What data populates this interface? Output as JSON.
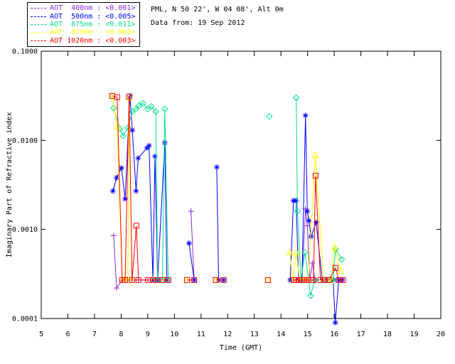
{
  "header": {
    "line1": "PML, N 50 22', W 04 08', Alt 0m",
    "line2": "Data from: 19 Sep 2012"
  },
  "legend": {
    "items": [
      {
        "label": "AOT  400nm : <0.001>",
        "color": "#8A2BD6"
      },
      {
        "label": "AOT  500nm : <0.005>",
        "color": "#0000FF"
      },
      {
        "label": "AOT  675nm : <0.011>",
        "color": "#00DE8C"
      },
      {
        "label": "AOT  870nm : <0.003>",
        "color": "#FFFF00"
      },
      {
        "label": "AOT 1020nm : <0.003>",
        "color": "#FF0000"
      }
    ]
  },
  "chart_data": {
    "type": "line",
    "title": "",
    "xlabel": "Time (GMT)",
    "ylabel": "Imaginary Part of Refractive index",
    "xlim": [
      5,
      20
    ],
    "ylim": [
      0.0001,
      0.1
    ],
    "yscale": "log",
    "grid": false,
    "legend_position": "top-left",
    "xticks": [
      5,
      6,
      7,
      8,
      9,
      10,
      11,
      12,
      13,
      14,
      15,
      16,
      17,
      18,
      19,
      20
    ],
    "yticks": [
      0.1,
      0.01,
      0.001,
      0.0001
    ],
    "ytick_labels": [
      "0.1000",
      "0.0100",
      "0.0010",
      "0.0001"
    ],
    "axis_color": "#000000",
    "series": [
      {
        "name": "AOT 400nm",
        "color": "#8A2BD6",
        "marker": "plus",
        "points": [
          [
            7.72,
            0.00085
          ],
          [
            7.83,
            0.00022
          ],
          [
            8.04,
            0.00027
          ],
          [
            8.15,
            0.00027
          ],
          [
            8.25,
            0.00027
          ],
          [
            8.41,
            0.00027
          ],
          [
            8.65,
            0.00027
          ],
          [
            9.0,
            0.00027
          ],
          [
            10.62,
            0.0016
          ],
          [
            10.74,
            0.00027
          ],
          [
            14.47,
            0.00027
          ],
          [
            14.57,
            0.00027
          ],
          [
            14.68,
            0.00027
          ],
          [
            14.79,
            0.00027
          ],
          [
            14.92,
            0.0017
          ],
          [
            14.99,
            0.0011
          ],
          [
            15.08,
            0.00027
          ],
          [
            15.18,
            0.00042
          ],
          [
            15.27,
            0.00027
          ]
        ]
      },
      {
        "name": "AOT 500nm",
        "color": "#0000FF",
        "marker": "asterisk",
        "points": [
          [
            7.69,
            0.0027
          ],
          [
            7.83,
            0.0038
          ],
          [
            8.01,
            0.0049
          ],
          [
            8.15,
            0.0022
          ],
          [
            8.33,
            0.0315
          ],
          [
            8.42,
            0.013
          ],
          [
            8.56,
            0.0027
          ],
          [
            8.64,
            0.0063
          ],
          [
            8.97,
            0.0082
          ],
          [
            9.05,
            0.0087
          ],
          [
            9.19,
            0.00027
          ],
          [
            9.27,
            0.0066
          ],
          [
            9.37,
            0.00027
          ],
          [
            9.64,
            0.0094
          ],
          [
            9.72,
            0.00027
          ],
          [
            10.55,
            0.0007
          ],
          [
            10.74,
            0.00027
          ],
          [
            11.59,
            0.005
          ],
          [
            11.66,
            0.00027
          ],
          [
            11.85,
            0.00027
          ],
          [
            14.35,
            0.00027
          ],
          [
            14.47,
            0.0021
          ],
          [
            14.57,
            0.0021
          ],
          [
            14.66,
            0.00027
          ],
          [
            14.79,
            0.00027
          ],
          [
            14.92,
            0.019
          ],
          [
            14.99,
            0.0016
          ],
          [
            15.05,
            0.00125
          ],
          [
            15.13,
            0.00083
          ],
          [
            15.32,
            0.0012
          ],
          [
            15.55,
            0.00027
          ],
          [
            15.7,
            0.00027
          ],
          [
            15.96,
            0.00027
          ],
          [
            16.04,
            9e-05
          ],
          [
            16.17,
            0.00027
          ],
          [
            16.3,
            0.00027
          ]
        ]
      },
      {
        "name": "AOT 675nm",
        "color": "#00DE8C",
        "marker": "diamond",
        "points": [
          [
            7.72,
            0.023
          ],
          [
            7.95,
            0.0135
          ],
          [
            8.08,
            0.0112
          ],
          [
            8.25,
            0.0138
          ],
          [
            8.42,
            0.021
          ],
          [
            8.55,
            0.0223
          ],
          [
            8.67,
            0.0245
          ],
          [
            8.82,
            0.026
          ],
          [
            9.0,
            0.0225
          ],
          [
            9.13,
            0.024
          ],
          [
            9.3,
            0.021
          ],
          [
            9.37,
            0.00027
          ],
          [
            9.55,
            0.00027
          ],
          [
            9.64,
            0.0225
          ],
          [
            9.77,
            0.00027
          ],
          [
            13.56,
            0.0185
          ],
          [
            14.57,
            0.03
          ],
          [
            14.62,
            0.0016
          ],
          [
            14.75,
            0.00027
          ],
          [
            14.9,
            0.00055
          ],
          [
            15.11,
            0.00018
          ],
          [
            15.27,
            0.00027
          ],
          [
            15.64,
            0.00027
          ],
          [
            15.8,
            0.00027
          ],
          [
            15.96,
            0.00027
          ],
          [
            16.05,
            0.0006
          ],
          [
            16.28,
            0.00046
          ]
        ]
      },
      {
        "name": "AOT 870nm",
        "color": "#FFFF00",
        "marker": "triangle",
        "points": [
          [
            7.67,
            0.031
          ],
          [
            7.85,
            0.0143
          ],
          [
            8.04,
            0.00027
          ],
          [
            8.15,
            0.00027
          ],
          [
            8.25,
            0.00027
          ],
          [
            8.3,
            0.03
          ],
          [
            8.41,
            0.00027
          ],
          [
            9.19,
            0.00027
          ],
          [
            10.47,
            0.00027
          ],
          [
            11.55,
            0.00027
          ],
          [
            13.51,
            0.00027
          ],
          [
            14.33,
            0.00055
          ],
          [
            14.45,
            0.00027
          ],
          [
            14.57,
            0.00055
          ],
          [
            14.7,
            0.00027
          ],
          [
            14.89,
            0.00027
          ],
          [
            15.03,
            0.00027
          ],
          [
            15.29,
            0.0068
          ],
          [
            15.6,
            0.00027
          ],
          [
            15.9,
            0.00027
          ],
          [
            16.01,
            0.00064
          ],
          [
            16.25,
            0.00034
          ]
        ]
      },
      {
        "name": "AOT 1020nm",
        "color": "#FF0000",
        "marker": "square",
        "points": [
          [
            7.67,
            0.0315
          ],
          [
            7.85,
            0.0305
          ],
          [
            8.04,
            0.00027
          ],
          [
            8.15,
            0.00027
          ],
          [
            8.3,
            0.031
          ],
          [
            8.41,
            0.00027
          ],
          [
            8.57,
            0.0011
          ],
          [
            8.65,
            0.00027
          ],
          [
            9.0,
            0.00027
          ],
          [
            9.19,
            0.00027
          ],
          [
            9.37,
            0.00027
          ],
          [
            9.55,
            0.00027
          ],
          [
            9.77,
            0.00027
          ],
          [
            10.47,
            0.00027
          ],
          [
            10.74,
            0.00027
          ],
          [
            11.55,
            0.00027
          ],
          [
            11.85,
            0.00027
          ],
          [
            13.51,
            0.00027
          ],
          [
            14.47,
            0.00027
          ],
          [
            14.57,
            0.00027
          ],
          [
            14.68,
            0.00027
          ],
          [
            14.79,
            0.00027
          ],
          [
            14.89,
            0.00027
          ],
          [
            15.03,
            0.00027
          ],
          [
            15.13,
            0.00027
          ],
          [
            15.22,
            0.00027
          ],
          [
            15.3,
            0.004
          ],
          [
            15.48,
            0.00027
          ],
          [
            15.64,
            0.00027
          ],
          [
            15.8,
            0.00027
          ],
          [
            16.05,
            0.00037
          ],
          [
            16.17,
            0.00027
          ],
          [
            16.33,
            0.00027
          ]
        ]
      }
    ]
  }
}
